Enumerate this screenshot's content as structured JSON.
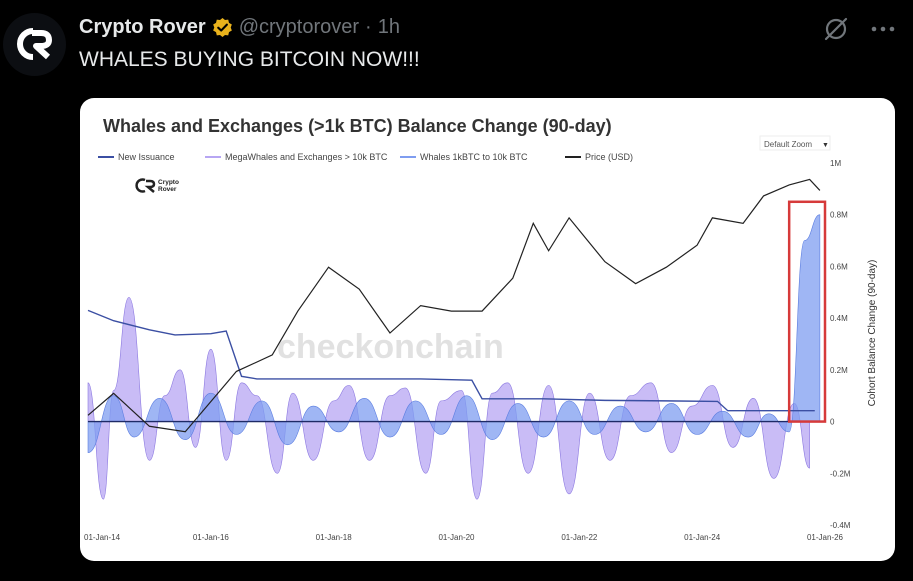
{
  "tweet": {
    "display_name": "Crypto Rover",
    "handle": "@cryptorover",
    "separator": "·",
    "time": "1h",
    "text": "WHALES BUYING BITCOIN NOW!!!"
  },
  "icons": {
    "avatar": "crypto-rover-logo-icon",
    "verified": "verified-badge-icon",
    "grok": "grok-icon",
    "more": "more-icon"
  },
  "colors": {
    "background": "#000000",
    "badge": "#e9b21c",
    "handle": "#71767b",
    "new_issuance": "#3b4fa3",
    "mega_whales": "#b7a6f3",
    "whales": "#7f9df0",
    "price": "#222222",
    "highlight": "#d63a3a"
  },
  "chart_data": {
    "type": "area",
    "title": "Whales and Exchanges (>1k BTC) Balance Change (90-day)",
    "zoom_label": "Default Zoom",
    "zoom_arrow": "▼",
    "watermark": "checkonchain",
    "logo_text": [
      "Crypto",
      "Rover"
    ],
    "legend": [
      "New Issuance",
      "MegaWhales and Exchanges > 10k BTC",
      "Whales 1kBTC to 10k BTC",
      "Price (USD)"
    ],
    "ylabel_right": "Cohort Balance Change (90-day)",
    "y_ticks": [
      {
        "value": 1000000,
        "label": "1M"
      },
      {
        "value": 800000,
        "label": "0.8M"
      },
      {
        "value": 600000,
        "label": "0.6M"
      },
      {
        "value": 400000,
        "label": "0.4M"
      },
      {
        "value": 200000,
        "label": "0.2M"
      },
      {
        "value": 0,
        "label": "0"
      },
      {
        "value": -200000,
        "label": "-0.2M"
      },
      {
        "value": -400000,
        "label": "-0.4M"
      }
    ],
    "x_ticks": [
      "01-Jan-14",
      "01-Jan-16",
      "01-Jan-18",
      "01-Jan-20",
      "01-Jan-22",
      "01-Jan-24",
      "01-Jan-26"
    ],
    "x_range": [
      "2014-01-01",
      "2026-01-01"
    ],
    "ylim": [
      -400000,
      1000000
    ],
    "series": [
      {
        "name": "New Issuance",
        "x": [
          "2014-01",
          "2014-06",
          "2015-01",
          "2015-06",
          "2016-01",
          "2016-04",
          "2016-07",
          "2016-10",
          "2017-06",
          "2018-06",
          "2019-06",
          "2020-04",
          "2020-06",
          "2021-06",
          "2022-06",
          "2023-06",
          "2024-04",
          "2024-06",
          "2025-06",
          "2025-11"
        ],
        "values": [
          430000,
          390000,
          355000,
          335000,
          340000,
          350000,
          175000,
          165000,
          165000,
          165000,
          165000,
          160000,
          88000,
          88000,
          82000,
          80000,
          78000,
          42000,
          42000,
          42000
        ]
      },
      {
        "name": "MegaWhales and Exchanges > 10k BTC",
        "x": [
          "2014-01",
          "2014-04",
          "2014-06",
          "2014-09",
          "2015-01",
          "2015-04",
          "2015-07",
          "2015-10",
          "2016-01",
          "2016-04",
          "2016-07",
          "2016-10",
          "2017-02",
          "2017-05",
          "2017-09",
          "2018-01",
          "2018-04",
          "2018-08",
          "2018-12",
          "2019-03",
          "2019-07",
          "2019-10",
          "2020-02",
          "2020-05",
          "2020-08",
          "2020-11",
          "2021-03",
          "2021-07",
          "2021-11",
          "2022-03",
          "2022-07",
          "2022-11",
          "2023-03",
          "2023-07",
          "2023-11",
          "2024-03",
          "2024-07",
          "2024-11",
          "2025-03",
          "2025-07",
          "2025-10"
        ],
        "values": [
          150000,
          -300000,
          120000,
          480000,
          -150000,
          100000,
          200000,
          -100000,
          280000,
          -150000,
          150000,
          100000,
          -200000,
          110000,
          -150000,
          80000,
          140000,
          -150000,
          100000,
          130000,
          -200000,
          80000,
          120000,
          -300000,
          110000,
          150000,
          -200000,
          140000,
          -280000,
          110000,
          -150000,
          100000,
          150000,
          -120000,
          60000,
          140000,
          -100000,
          90000,
          -220000,
          70000,
          -180000
        ]
      },
      {
        "name": "Whales 1kBTC to 10k BTC",
        "x": [
          "2014-01",
          "2014-06",
          "2014-10",
          "2015-03",
          "2015-08",
          "2016-01",
          "2016-06",
          "2016-11",
          "2017-04",
          "2017-09",
          "2018-02",
          "2018-07",
          "2018-12",
          "2019-05",
          "2019-10",
          "2020-03",
          "2020-08",
          "2021-01",
          "2021-06",
          "2021-11",
          "2022-04",
          "2022-09",
          "2023-02",
          "2023-07",
          "2023-12",
          "2024-05",
          "2024-10",
          "2025-02",
          "2025-06",
          "2025-09",
          "2025-12"
        ],
        "values": [
          -120000,
          100000,
          -60000,
          90000,
          -70000,
          110000,
          -50000,
          80000,
          -90000,
          60000,
          -40000,
          90000,
          -60000,
          80000,
          -50000,
          100000,
          -70000,
          70000,
          -60000,
          80000,
          -50000,
          60000,
          -40000,
          70000,
          -50000,
          40000,
          -60000,
          30000,
          -40000,
          700000,
          800000
        ]
      },
      {
        "name": "Price (USD)",
        "x": [
          "2014-01",
          "2014-06",
          "2015-01",
          "2015-08",
          "2016-06",
          "2017-01",
          "2017-06",
          "2017-12",
          "2018-06",
          "2018-12",
          "2019-06",
          "2019-12",
          "2020-06",
          "2020-12",
          "2021-04",
          "2021-07",
          "2021-11",
          "2022-06",
          "2022-12",
          "2023-06",
          "2023-12",
          "2024-03",
          "2024-09",
          "2025-01",
          "2025-06",
          "2025-10",
          "2025-12"
        ],
        "values": [
          3.0,
          3.2,
          2.9,
          2.85,
          3.4,
          3.55,
          3.95,
          4.35,
          4.15,
          3.75,
          4.0,
          3.95,
          3.95,
          4.25,
          4.75,
          4.5,
          4.8,
          4.4,
          4.2,
          4.35,
          4.55,
          4.8,
          4.75,
          5.0,
          5.1,
          5.15,
          5.05
        ]
      }
    ],
    "price_log10_range": [
      2.0,
      5.3
    ],
    "highlight": {
      "x_start": "2025-06",
      "x_end": "2026-01",
      "y_min": 0,
      "y_max": 850000
    }
  }
}
